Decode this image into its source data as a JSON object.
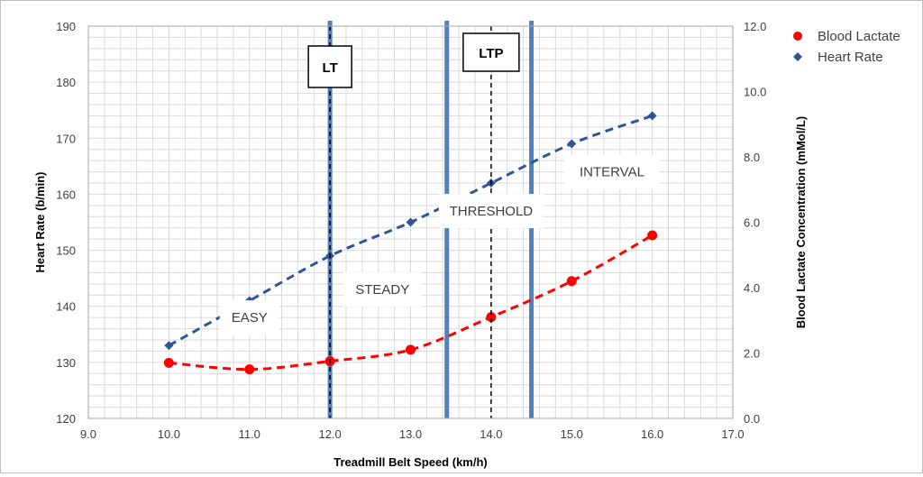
{
  "chart_data": {
    "type": "line",
    "title": "",
    "xlabel": "Treadmill Belt Speed (km/h)",
    "ylabel": "Heart Rate (b/min)",
    "y2label": "Blood Lactate Concentration (mMol/L)",
    "xlim": [
      9.0,
      17.0
    ],
    "ylim": [
      120,
      190
    ],
    "y2lim": [
      0.0,
      12.0
    ],
    "x_ticks": [
      "9.0",
      "10.0",
      "11.0",
      "12.0",
      "13.0",
      "14.0",
      "15.0",
      "16.0",
      "17.0"
    ],
    "y_ticks": [
      "120",
      "130",
      "140",
      "150",
      "160",
      "170",
      "180",
      "190"
    ],
    "y2_ticks": [
      "0.0",
      "2.0",
      "4.0",
      "6.0",
      "8.0",
      "10.0",
      "12.0"
    ],
    "grid": true,
    "legend_position": "right",
    "series": [
      {
        "name": "Blood Lactate",
        "axis": "right",
        "marker": "circle",
        "color": "#ff0000",
        "x": [
          10,
          11,
          12,
          13,
          14,
          15,
          16
        ],
        "values": [
          1.7,
          1.5,
          1.75,
          2.1,
          3.1,
          4.2,
          5.6
        ]
      },
      {
        "name": "Heart Rate",
        "axis": "left",
        "marker": "diamond",
        "color": "#2f5597",
        "x": [
          10,
          11,
          12,
          13,
          14,
          15,
          16
        ],
        "values": [
          133,
          141,
          149,
          155,
          162,
          169,
          174
        ]
      }
    ],
    "threshold_lines": [
      {
        "label": "LT",
        "x": 12.0
      },
      {
        "label": "LTP",
        "x": 14.0
      }
    ],
    "zone_boundaries": [
      12.0,
      13.45,
      14.5
    ],
    "zones": [
      {
        "label": "EASY",
        "x": 11.0,
        "y": 138
      },
      {
        "label": "STEADY",
        "x": 12.65,
        "y": 143
      },
      {
        "label": "THRESHOLD",
        "x": 14.0,
        "y": 157
      },
      {
        "label": "INTERVAL",
        "x": 15.5,
        "y": 164
      }
    ],
    "colors": {
      "grid": "#d9d9d9",
      "zone_line": "#4f81bd",
      "threshold_line": "#000000"
    }
  }
}
